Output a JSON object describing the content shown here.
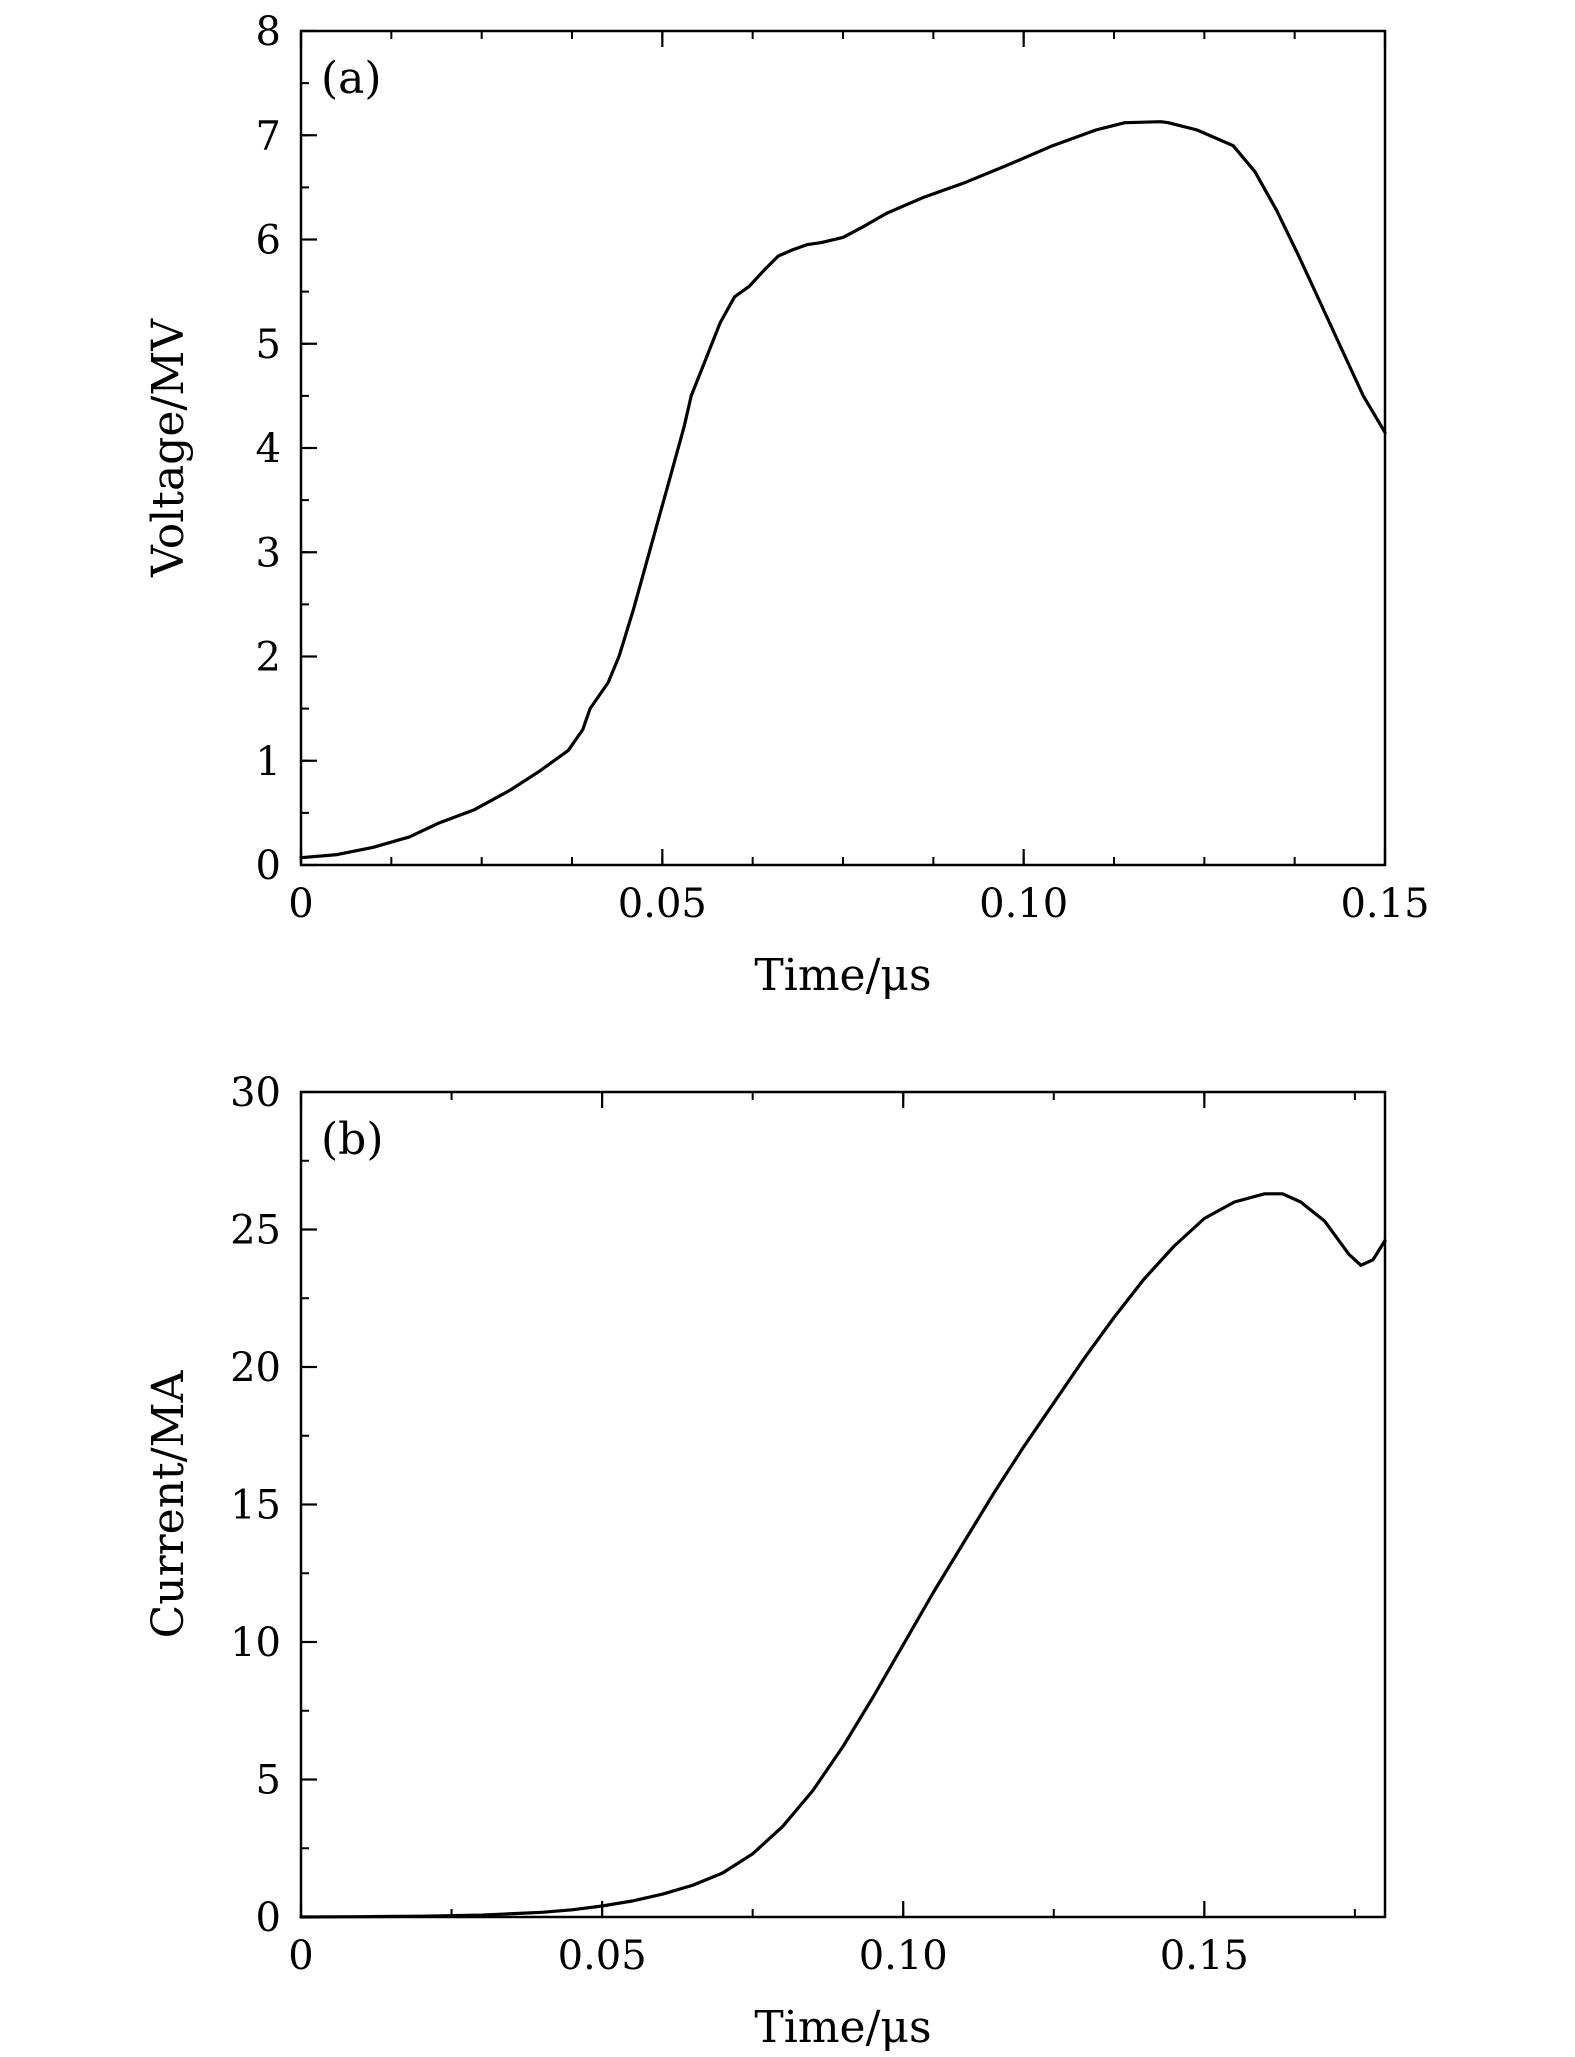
{
  "chart_data": [
    {
      "type": "line",
      "panel_label": "(a)",
      "xlabel": "Time/μs",
      "ylabel": "Voltage/MV",
      "xlim": [
        0,
        0.15
      ],
      "ylim": [
        0,
        8
      ],
      "xticks": [
        0,
        0.05,
        0.1,
        0.15
      ],
      "xtick_labels": [
        "0",
        "0.05",
        "0.10",
        "0.15"
      ],
      "yticks": [
        0,
        1,
        2,
        3,
        4,
        5,
        6,
        7,
        8
      ],
      "ytick_labels": [
        "0",
        "1",
        "2",
        "3",
        "4",
        "5",
        "6",
        "7",
        "8"
      ],
      "x_minor_step": 0.0125,
      "y_minor_step": 0.5,
      "grid": false,
      "line_color": "#000000",
      "series": [
        {
          "x": [
            0,
            0.005,
            0.01,
            0.015,
            0.019,
            0.024,
            0.029,
            0.033,
            0.037,
            0.039,
            0.04,
            0.0425,
            0.044,
            0.046,
            0.0472,
            0.049,
            0.051,
            0.053,
            0.054,
            0.056,
            0.058,
            0.06,
            0.062,
            0.064,
            0.066,
            0.068,
            0.07,
            0.072,
            0.075,
            0.078,
            0.081,
            0.086,
            0.092,
            0.098,
            0.104,
            0.11,
            0.114,
            0.119,
            0.12,
            0.124,
            0.129,
            0.132,
            0.135,
            0.138,
            0.141,
            0.144,
            0.147,
            0.15
          ],
          "y": [
            0.07,
            0.1,
            0.17,
            0.27,
            0.4,
            0.53,
            0.72,
            0.9,
            1.1,
            1.3,
            1.5,
            1.75,
            2.0,
            2.45,
            2.75,
            3.2,
            3.7,
            4.2,
            4.5,
            4.85,
            5.2,
            5.45,
            5.55,
            5.7,
            5.84,
            5.9,
            5.95,
            5.97,
            6.02,
            6.13,
            6.25,
            6.4,
            6.55,
            6.72,
            6.9,
            7.05,
            7.12,
            7.13,
            7.12,
            7.05,
            6.9,
            6.65,
            6.28,
            5.85,
            5.4,
            4.95,
            4.5,
            4.15
          ]
        }
      ]
    },
    {
      "type": "line",
      "panel_label": "(b)",
      "xlabel": "Time/μs",
      "ylabel": "Current/MA",
      "xlim": [
        0,
        0.18
      ],
      "ylim": [
        0,
        30
      ],
      "xticks": [
        0,
        0.05,
        0.1,
        0.15
      ],
      "xtick_labels": [
        "0",
        "0.05",
        "0.10",
        "0.15"
      ],
      "yticks": [
        0,
        5,
        10,
        15,
        20,
        25,
        30
      ],
      "ytick_labels": [
        "0",
        "5",
        "10",
        "15",
        "20",
        "25",
        "30"
      ],
      "x_minor_step": 0.025,
      "y_minor_step": 2.5,
      "grid": false,
      "line_color": "#000000",
      "series": [
        {
          "x": [
            0,
            0.01,
            0.02,
            0.03,
            0.04,
            0.045,
            0.05,
            0.055,
            0.06,
            0.065,
            0.07,
            0.075,
            0.08,
            0.085,
            0.09,
            0.095,
            0.1,
            0.105,
            0.11,
            0.115,
            0.12,
            0.125,
            0.13,
            0.135,
            0.14,
            0.145,
            0.15,
            0.155,
            0.16,
            0.163,
            0.166,
            0.17,
            0.174,
            0.176,
            0.178,
            0.18
          ],
          "y": [
            0,
            0.01,
            0.03,
            0.07,
            0.17,
            0.26,
            0.4,
            0.58,
            0.83,
            1.15,
            1.6,
            2.3,
            3.3,
            4.6,
            6.2,
            8.0,
            9.9,
            11.8,
            13.6,
            15.4,
            17.1,
            18.7,
            20.3,
            21.8,
            23.2,
            24.4,
            25.4,
            26.0,
            26.3,
            26.3,
            26.0,
            25.3,
            24.1,
            23.7,
            23.9,
            24.6
          ]
        }
      ]
    }
  ]
}
